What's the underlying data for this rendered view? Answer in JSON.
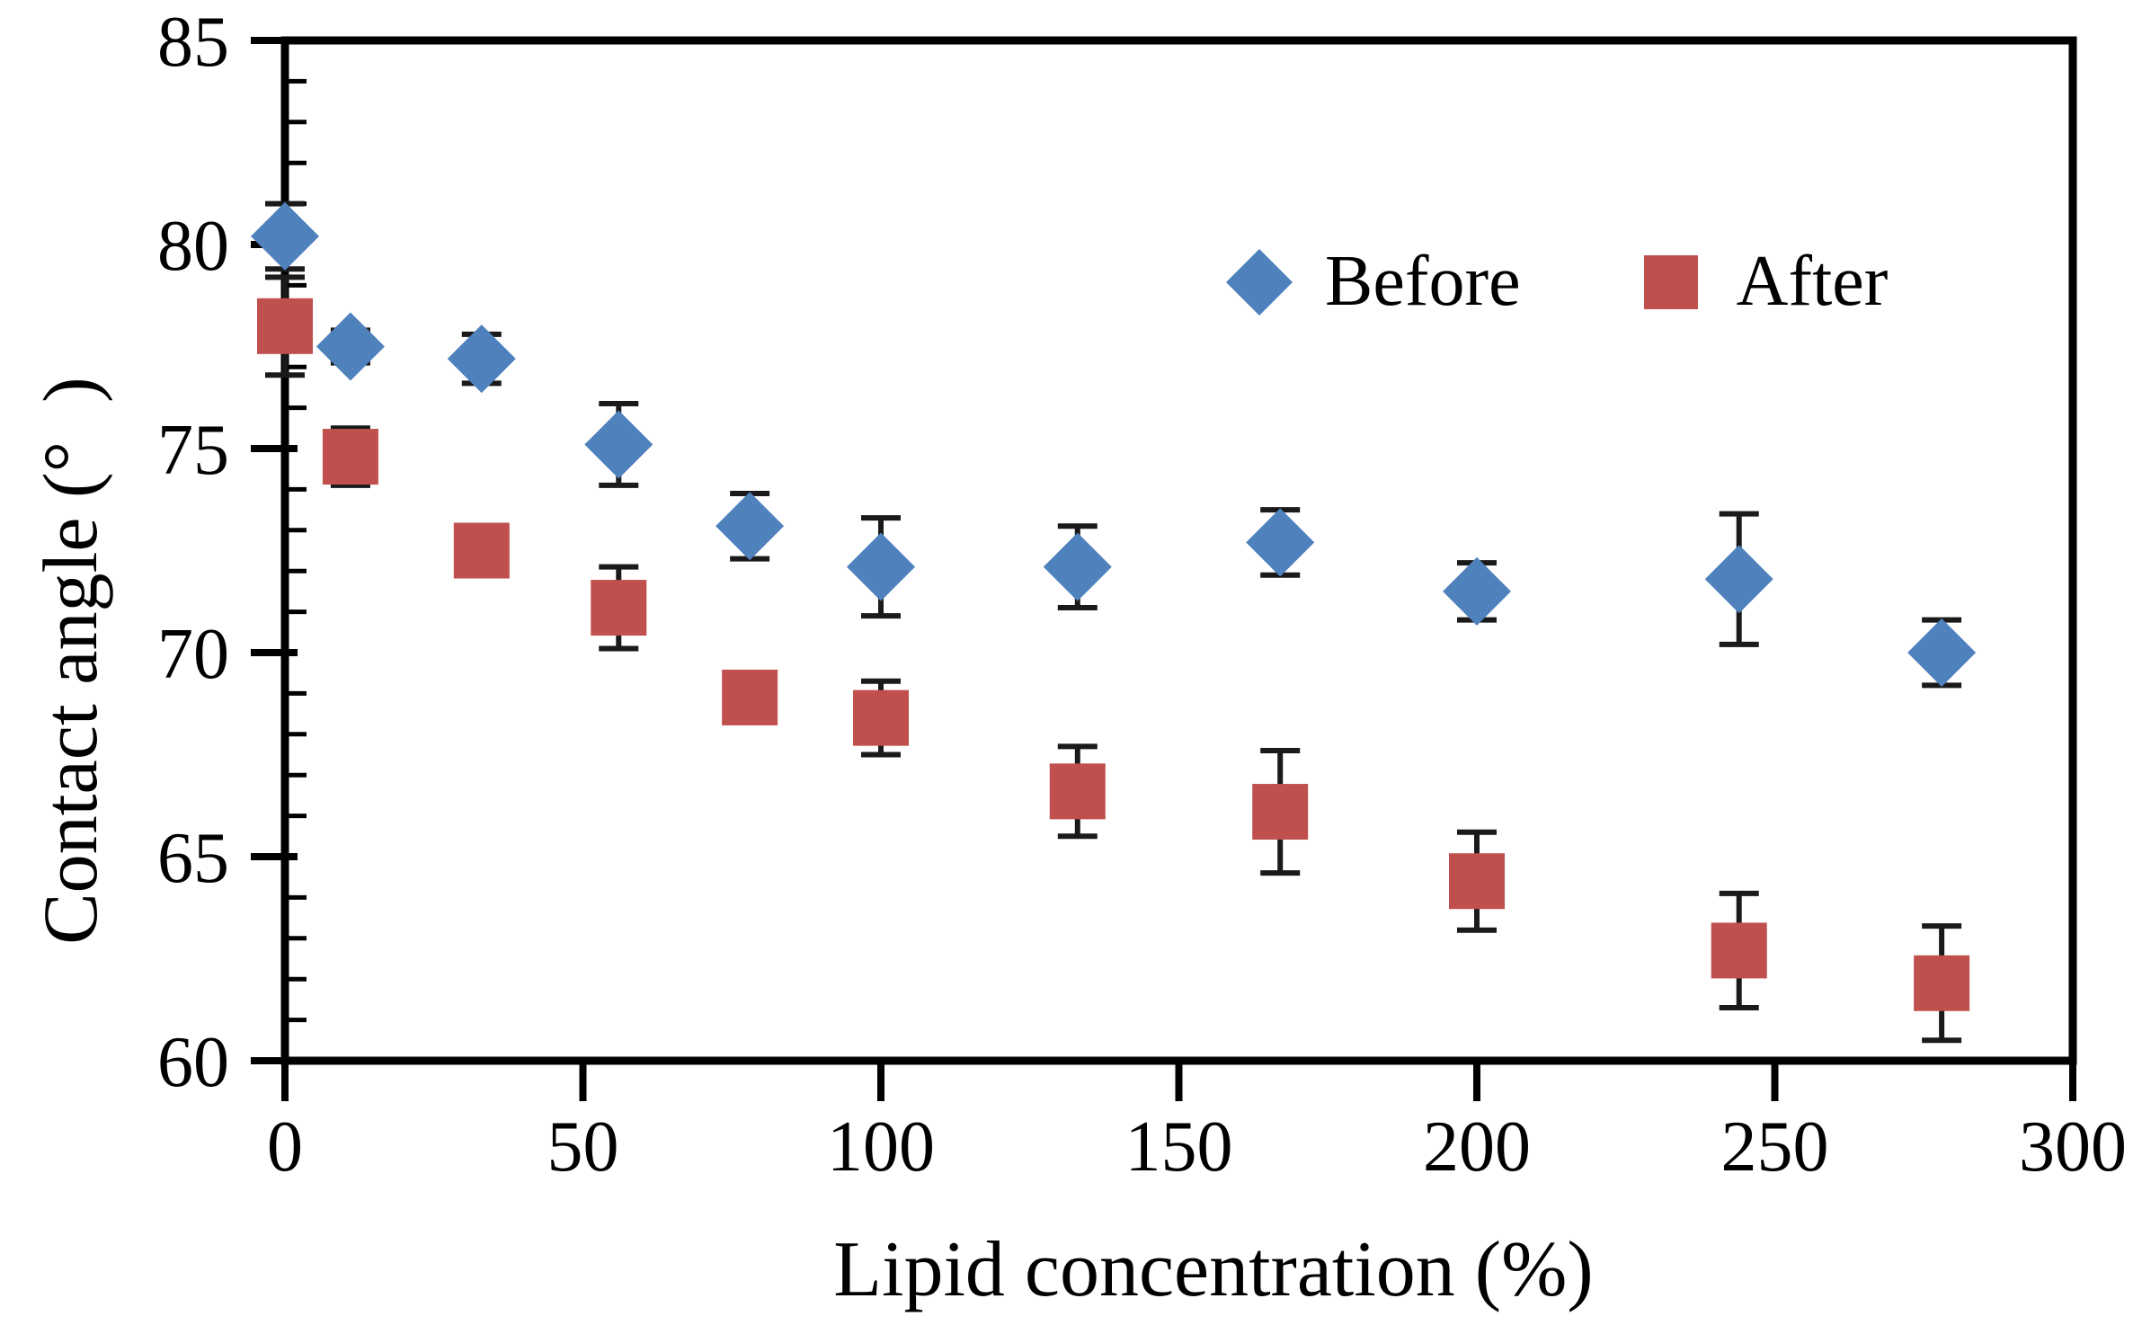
{
  "chart_data": {
    "type": "scatter",
    "title": "",
    "xlabel": "Lipid concentration (%)",
    "ylabel": "Contact angle (°  )",
    "xlim": [
      0,
      300
    ],
    "ylim": [
      60,
      85
    ],
    "x_ticks": [
      0,
      50,
      100,
      150,
      200,
      250,
      300
    ],
    "y_ticks": [
      60,
      65,
      70,
      75,
      80,
      85
    ],
    "y_minor_tick_step": 1,
    "grid": false,
    "legend_position": "inside upper right",
    "error_bars": true,
    "axis_color": "#000000",
    "background_color": "#ffffff",
    "series": [
      {
        "name": "Before",
        "marker": "diamond",
        "color": "#4F81BD",
        "x": [
          0,
          11,
          33,
          56,
          78,
          100,
          133,
          167,
          200,
          244,
          278
        ],
        "y": [
          80.2,
          77.5,
          77.2,
          75.1,
          73.1,
          72.1,
          72.1,
          72.7,
          71.5,
          71.8,
          70.0
        ],
        "yerr": [
          0.8,
          0.4,
          0.6,
          1.0,
          0.8,
          1.2,
          1.0,
          0.8,
          0.7,
          1.6,
          0.8
        ]
      },
      {
        "name": "After",
        "marker": "square",
        "color": "#C0504D",
        "x": [
          0,
          11,
          33,
          56,
          78,
          100,
          133,
          167,
          200,
          244,
          278
        ],
        "y": [
          78.0,
          74.8,
          72.5,
          71.1,
          68.9,
          68.4,
          66.6,
          66.1,
          64.4,
          62.7,
          61.9
        ],
        "yerr": [
          1.2,
          0.7,
          0.6,
          1.0,
          0.6,
          0.9,
          1.1,
          1.5,
          1.2,
          1.4,
          1.4
        ]
      }
    ]
  }
}
